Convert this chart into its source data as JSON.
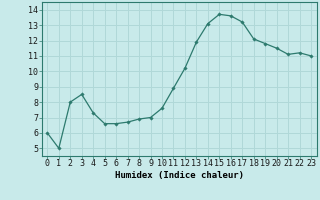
{
  "x": [
    0,
    1,
    2,
    3,
    4,
    5,
    6,
    7,
    8,
    9,
    10,
    11,
    12,
    13,
    14,
    15,
    16,
    17,
    18,
    19,
    20,
    21,
    22,
    23
  ],
  "y": [
    6.0,
    5.0,
    8.0,
    8.5,
    7.3,
    6.6,
    6.6,
    6.7,
    6.9,
    7.0,
    7.6,
    8.9,
    10.2,
    11.9,
    13.1,
    13.7,
    13.6,
    13.2,
    12.1,
    11.8,
    11.5,
    11.1,
    11.2,
    11.0
  ],
  "line_color": "#2d7a6e",
  "marker": "D",
  "marker_size": 1.8,
  "line_width": 0.9,
  "background_color": "#c8eaea",
  "grid_color": "#b0d8d8",
  "xlabel": "Humidex (Indice chaleur)",
  "xlabel_fontsize": 6.5,
  "tick_fontsize": 6.0,
  "ylim": [
    4.5,
    14.5
  ],
  "yticks": [
    5,
    6,
    7,
    8,
    9,
    10,
    11,
    12,
    13,
    14
  ],
  "xlim": [
    -0.5,
    23.5
  ],
  "xticks": [
    0,
    1,
    2,
    3,
    4,
    5,
    6,
    7,
    8,
    9,
    10,
    11,
    12,
    13,
    14,
    15,
    16,
    17,
    18,
    19,
    20,
    21,
    22,
    23
  ],
  "xtick_labels": [
    "0",
    "1",
    "2",
    "3",
    "4",
    "5",
    "6",
    "7",
    "8",
    "9",
    "10",
    "11",
    "12",
    "13",
    "14",
    "15",
    "16",
    "17",
    "18",
    "19",
    "20",
    "21",
    "22",
    "23"
  ]
}
